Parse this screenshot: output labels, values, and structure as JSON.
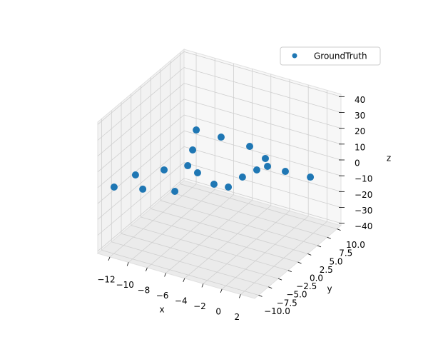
{
  "chart_data": {
    "type": "scatter3d",
    "series": [
      {
        "name": "GroundTruth",
        "color": "#1f77b4",
        "x": [
          2.68,
          0.14,
          -1.76,
          -2.28,
          -2.75,
          -2.93,
          -4.35,
          -6.8,
          -9.57,
          -12.06,
          -11.5,
          -9.69,
          -6.74,
          -8.2,
          -9.3,
          -10.9,
          -8.24,
          -5.08,
          -2.68
        ],
        "y": [
          5.15,
          4.82,
          4.8,
          3.3,
          0.77,
          -2.4,
          -2.68,
          -6.82,
          -8.4,
          -9.78,
          -5.66,
          -2.68,
          -1.17,
          -0.2,
          3.67,
          8.4,
          8.4,
          8.16,
          6.44
        ],
        "z": [
          0,
          0,
          0,
          0,
          0,
          0,
          0,
          0,
          0,
          0,
          0,
          0,
          0,
          0,
          0,
          0,
          0,
          0,
          0
        ]
      }
    ],
    "xlabel": "x",
    "ylabel": "y",
    "zlabel": "z",
    "xlim": [
      -13.3,
      3.5
    ],
    "ylim": [
      -11,
      11
    ],
    "zlim": [
      -41.5,
      41.5
    ],
    "xticks": [
      {
        "value": -12,
        "label": "−12"
      },
      {
        "value": -10,
        "label": "−10"
      },
      {
        "value": -8,
        "label": "−8"
      },
      {
        "value": -6,
        "label": "−6"
      },
      {
        "value": -4,
        "label": "−4"
      },
      {
        "value": -2,
        "label": "−2"
      },
      0,
      2
    ],
    "yticks": [
      {
        "value": -10,
        "label": "−10.0"
      },
      {
        "value": -7.5,
        "label": "−7.5"
      },
      {
        "value": -5,
        "label": "−5.0"
      },
      {
        "value": -2.5,
        "label": "−2.5"
      },
      {
        "value": 0,
        "label": "0.0"
      },
      2.5,
      {
        "value": 5,
        "label": "5.0"
      },
      7.5,
      {
        "value": 10,
        "label": "10.0"
      }
    ],
    "zticks": [
      {
        "value": -40,
        "label": "−40"
      },
      {
        "value": -30,
        "label": "−30"
      },
      {
        "value": -20,
        "label": "−20"
      },
      {
        "value": -10,
        "label": "−10"
      },
      0,
      10,
      20,
      30,
      40
    ],
    "grid": true,
    "legend": "upper right"
  }
}
